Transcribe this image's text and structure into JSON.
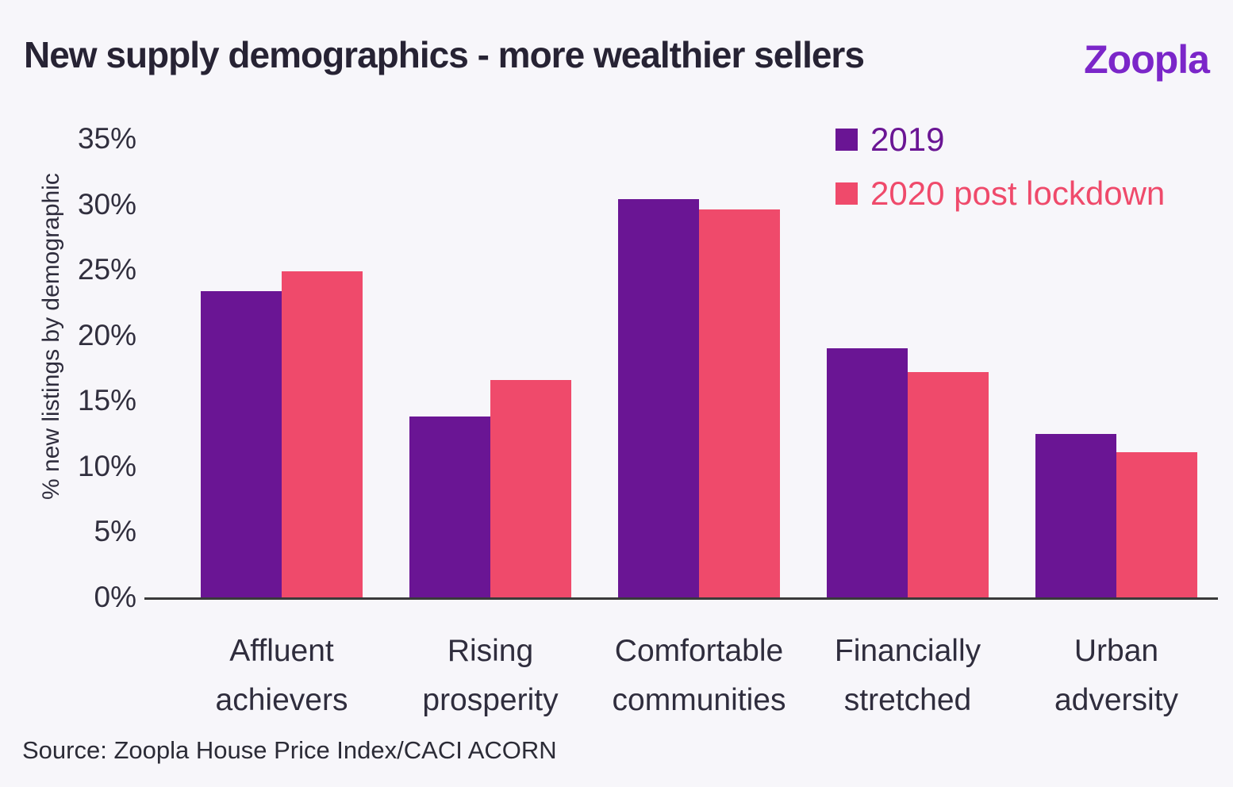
{
  "header": {
    "title": "New supply demographics - more wealthier sellers",
    "logo_text": "Zoopla"
  },
  "footer": {
    "source": "Source: Zoopla House Price Index/CACI ACORN"
  },
  "colors": {
    "series_2019": "#6a1594",
    "series_2020": "#ef4a6b",
    "logo_purple": "#7b26c9",
    "title_text": "#272334",
    "axis_text": "#312f3e",
    "background": "#f7f6fa",
    "baseline": "#3a3a3a"
  },
  "chart_data": {
    "type": "bar",
    "title": "New supply demographics - more wealthier sellers",
    "xlabel": "",
    "ylabel": "% new listings by demographic",
    "ylim": [
      0,
      35
    ],
    "ytick_step": 5,
    "ytick_labels": [
      "0%",
      "5%",
      "10%",
      "15%",
      "20%",
      "25%",
      "30%",
      "35%"
    ],
    "grid": false,
    "legend_position": "top-right",
    "categories": [
      "Affluent achievers",
      "Rising prosperity",
      "Comfortable communities",
      "Financially stretched",
      "Urban adversity"
    ],
    "series": [
      {
        "name": "2019",
        "color": "#6a1594",
        "values": [
          23.4,
          13.8,
          30.4,
          19.0,
          12.5
        ]
      },
      {
        "name": "2020 post lockdown",
        "color": "#ef4a6b",
        "values": [
          24.9,
          16.6,
          29.6,
          17.2,
          11.1
        ]
      }
    ]
  }
}
